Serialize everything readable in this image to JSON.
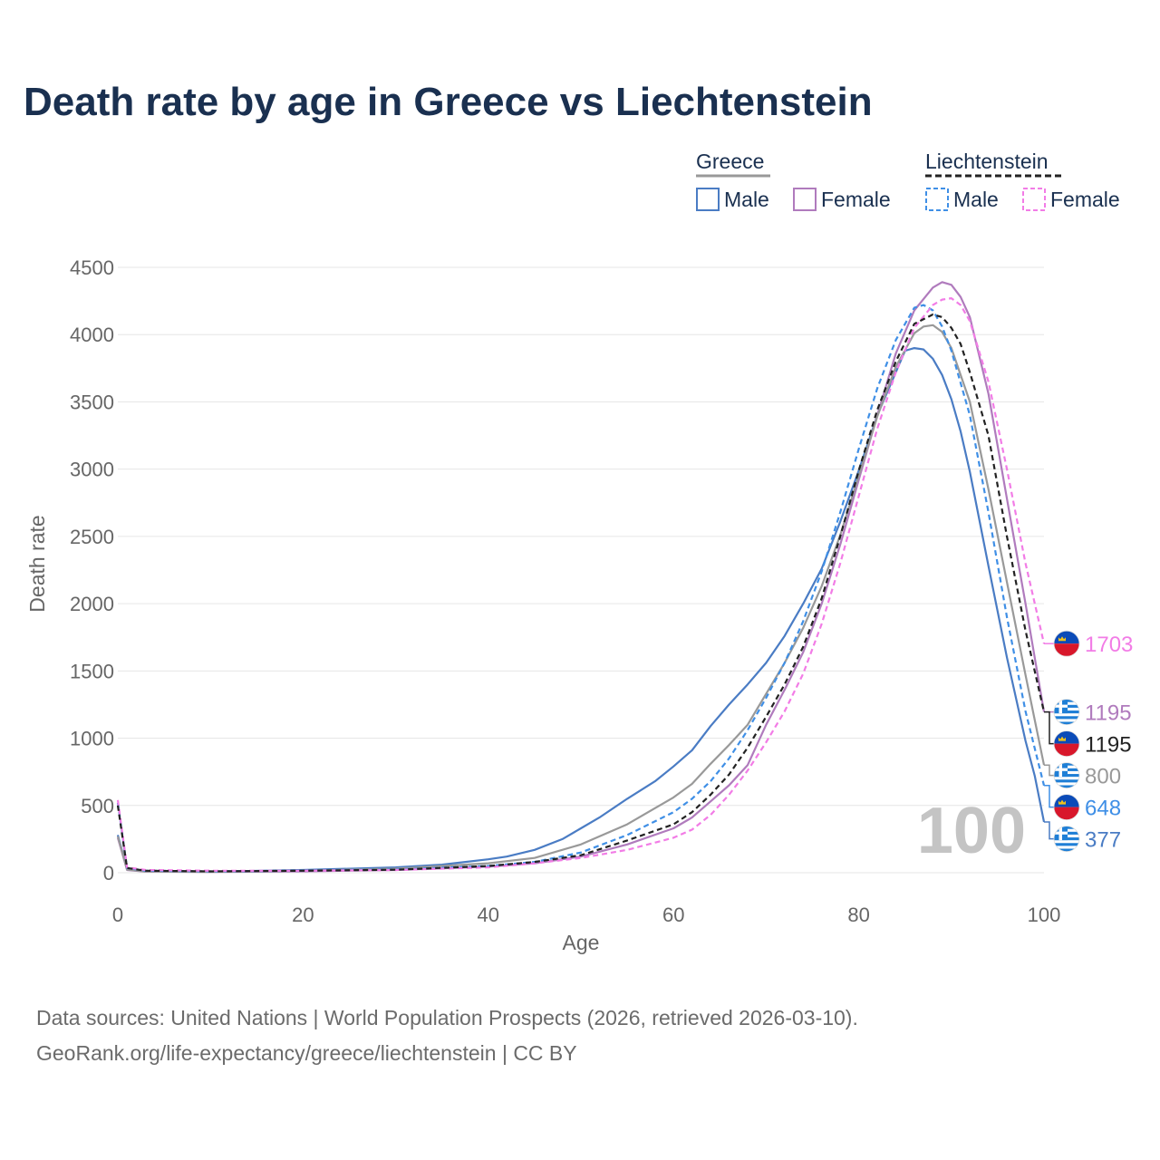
{
  "title": "Death rate by age in Greece vs Liechtenstein",
  "legend": {
    "groups": [
      {
        "name": "Greece",
        "style": "solid",
        "color": "#999999",
        "items": [
          {
            "label": "Male",
            "color": "#4a7cc4"
          },
          {
            "label": "Female",
            "color": "#b07bbd"
          }
        ]
      },
      {
        "name": "Liechtenstein",
        "style": "dashed",
        "color": "#222222",
        "items": [
          {
            "label": "Male",
            "color": "#3f8fe6"
          },
          {
            "label": "Female",
            "color": "#f27ce6"
          }
        ]
      }
    ]
  },
  "watermark": "100",
  "footer": {
    "line1": "Data sources: United Nations | World Population Prospects (2026, retrieved 2026-03-10).",
    "line2": "GeoRank.org/life-expectancy/greece/liechtenstein | CC BY"
  },
  "chart_data": {
    "type": "line",
    "xlabel": "Age",
    "ylabel": "Death rate",
    "xlim": [
      0,
      100
    ],
    "ylim": [
      0,
      4500
    ],
    "xticks": [
      0,
      20,
      40,
      60,
      80,
      100
    ],
    "yticks": [
      0,
      500,
      1000,
      1500,
      2000,
      2500,
      3000,
      3500,
      4000,
      4500
    ],
    "grid": true,
    "series": [
      {
        "name": "Greece Male",
        "country": "Greece",
        "flag": "greece",
        "color": "#4a7cc4",
        "dash": false,
        "end_label": "377",
        "points": [
          [
            0,
            280
          ],
          [
            1,
            25
          ],
          [
            3,
            10
          ],
          [
            10,
            8
          ],
          [
            20,
            20
          ],
          [
            30,
            40
          ],
          [
            35,
            60
          ],
          [
            40,
            100
          ],
          [
            42,
            120
          ],
          [
            45,
            170
          ],
          [
            48,
            250
          ],
          [
            50,
            330
          ],
          [
            52,
            410
          ],
          [
            55,
            550
          ],
          [
            58,
            680
          ],
          [
            60,
            790
          ],
          [
            62,
            910
          ],
          [
            64,
            1090
          ],
          [
            66,
            1250
          ],
          [
            68,
            1400
          ],
          [
            70,
            1560
          ],
          [
            72,
            1760
          ],
          [
            74,
            2000
          ],
          [
            76,
            2260
          ],
          [
            78,
            2610
          ],
          [
            80,
            2990
          ],
          [
            82,
            3400
          ],
          [
            84,
            3720
          ],
          [
            85,
            3880
          ],
          [
            86,
            3900
          ],
          [
            87,
            3890
          ],
          [
            88,
            3820
          ],
          [
            89,
            3700
          ],
          [
            90,
            3520
          ],
          [
            91,
            3280
          ],
          [
            92,
            2980
          ],
          [
            94,
            2280
          ],
          [
            96,
            1600
          ],
          [
            98,
            980
          ],
          [
            99,
            720
          ],
          [
            100,
            377
          ]
        ]
      },
      {
        "name": "Greece Female",
        "country": "Greece",
        "flag": "greece",
        "color": "#b07bbd",
        "dash": false,
        "end_label": "1195",
        "points": [
          [
            0,
            260
          ],
          [
            1,
            20
          ],
          [
            3,
            8
          ],
          [
            10,
            6
          ],
          [
            20,
            10
          ],
          [
            30,
            20
          ],
          [
            40,
            45
          ],
          [
            45,
            70
          ],
          [
            50,
            120
          ],
          [
            55,
            210
          ],
          [
            60,
            330
          ],
          [
            62,
            410
          ],
          [
            64,
            530
          ],
          [
            66,
            650
          ],
          [
            68,
            800
          ],
          [
            70,
            1100
          ],
          [
            72,
            1360
          ],
          [
            74,
            1640
          ],
          [
            76,
            2000
          ],
          [
            78,
            2440
          ],
          [
            80,
            2920
          ],
          [
            82,
            3400
          ],
          [
            84,
            3860
          ],
          [
            86,
            4180
          ],
          [
            88,
            4350
          ],
          [
            89,
            4390
          ],
          [
            90,
            4370
          ],
          [
            91,
            4280
          ],
          [
            92,
            4130
          ],
          [
            94,
            3560
          ],
          [
            96,
            2780
          ],
          [
            98,
            2000
          ],
          [
            100,
            1195
          ]
        ]
      },
      {
        "name": "Greece Combined",
        "country": "Greece",
        "flag": "greece",
        "color": "#999999",
        "dash": false,
        "end_label": "800",
        "points": [
          [
            0,
            270
          ],
          [
            1,
            22
          ],
          [
            3,
            9
          ],
          [
            10,
            7
          ],
          [
            20,
            15
          ],
          [
            30,
            30
          ],
          [
            40,
            70
          ],
          [
            45,
            110
          ],
          [
            50,
            210
          ],
          [
            55,
            360
          ],
          [
            60,
            560
          ],
          [
            62,
            660
          ],
          [
            64,
            810
          ],
          [
            66,
            950
          ],
          [
            68,
            1100
          ],
          [
            70,
            1330
          ],
          [
            72,
            1560
          ],
          [
            74,
            1820
          ],
          [
            76,
            2130
          ],
          [
            78,
            2510
          ],
          [
            80,
            2950
          ],
          [
            82,
            3390
          ],
          [
            84,
            3760
          ],
          [
            86,
            4010
          ],
          [
            87,
            4060
          ],
          [
            88,
            4070
          ],
          [
            89,
            4020
          ],
          [
            90,
            3900
          ],
          [
            92,
            3500
          ],
          [
            94,
            2850
          ],
          [
            96,
            2160
          ],
          [
            98,
            1470
          ],
          [
            100,
            800
          ]
        ]
      },
      {
        "name": "Liechtenstein Male",
        "country": "Liechtenstein",
        "flag": "liechtenstein",
        "color": "#3f8fe6",
        "dash": true,
        "end_label": "648",
        "points": [
          [
            0,
            520
          ],
          [
            1,
            35
          ],
          [
            3,
            15
          ],
          [
            10,
            10
          ],
          [
            20,
            15
          ],
          [
            30,
            25
          ],
          [
            40,
            50
          ],
          [
            45,
            80
          ],
          [
            50,
            150
          ],
          [
            55,
            280
          ],
          [
            60,
            450
          ],
          [
            62,
            550
          ],
          [
            64,
            680
          ],
          [
            66,
            850
          ],
          [
            68,
            1060
          ],
          [
            70,
            1300
          ],
          [
            72,
            1560
          ],
          [
            74,
            1870
          ],
          [
            76,
            2240
          ],
          [
            78,
            2680
          ],
          [
            80,
            3150
          ],
          [
            82,
            3600
          ],
          [
            84,
            3960
          ],
          [
            86,
            4200
          ],
          [
            87,
            4220
          ],
          [
            88,
            4180
          ],
          [
            89,
            4060
          ],
          [
            90,
            3880
          ],
          [
            92,
            3400
          ],
          [
            94,
            2680
          ],
          [
            96,
            1900
          ],
          [
            98,
            1200
          ],
          [
            100,
            648
          ]
        ]
      },
      {
        "name": "Liechtenstein Female",
        "country": "Liechtenstein",
        "flag": "liechtenstein",
        "color": "#f27ce6",
        "dash": true,
        "end_label": "1703",
        "points": [
          [
            0,
            540
          ],
          [
            1,
            40
          ],
          [
            3,
            20
          ],
          [
            10,
            15
          ],
          [
            20,
            15
          ],
          [
            30,
            20
          ],
          [
            40,
            40
          ],
          [
            45,
            70
          ],
          [
            50,
            110
          ],
          [
            55,
            170
          ],
          [
            60,
            260
          ],
          [
            62,
            320
          ],
          [
            64,
            430
          ],
          [
            66,
            580
          ],
          [
            68,
            760
          ],
          [
            70,
            970
          ],
          [
            72,
            1200
          ],
          [
            74,
            1480
          ],
          [
            76,
            1850
          ],
          [
            78,
            2300
          ],
          [
            80,
            2800
          ],
          [
            82,
            3300
          ],
          [
            84,
            3720
          ],
          [
            86,
            4050
          ],
          [
            88,
            4220
          ],
          [
            89,
            4260
          ],
          [
            90,
            4270
          ],
          [
            91,
            4220
          ],
          [
            92,
            4100
          ],
          [
            94,
            3650
          ],
          [
            96,
            3000
          ],
          [
            98,
            2300
          ],
          [
            100,
            1703
          ]
        ]
      },
      {
        "name": "Liechtenstein Combined",
        "country": "Liechtenstein",
        "flag": "liechtenstein",
        "color": "#222222",
        "dash": true,
        "end_label": "1195",
        "points": [
          [
            0,
            500
          ],
          [
            1,
            35
          ],
          [
            3,
            15
          ],
          [
            10,
            10
          ],
          [
            20,
            15
          ],
          [
            30,
            22
          ],
          [
            40,
            50
          ],
          [
            45,
            80
          ],
          [
            50,
            130
          ],
          [
            55,
            240
          ],
          [
            60,
            360
          ],
          [
            62,
            450
          ],
          [
            64,
            580
          ],
          [
            66,
            730
          ],
          [
            68,
            930
          ],
          [
            70,
            1160
          ],
          [
            72,
            1400
          ],
          [
            74,
            1680
          ],
          [
            76,
            2040
          ],
          [
            78,
            2500
          ],
          [
            80,
            2990
          ],
          [
            82,
            3440
          ],
          [
            84,
            3800
          ],
          [
            86,
            4080
          ],
          [
            88,
            4150
          ],
          [
            89,
            4130
          ],
          [
            90,
            4050
          ],
          [
            91,
            3930
          ],
          [
            92,
            3720
          ],
          [
            94,
            3250
          ],
          [
            96,
            2500
          ],
          [
            98,
            1800
          ],
          [
            100,
            1195
          ]
        ]
      }
    ]
  }
}
